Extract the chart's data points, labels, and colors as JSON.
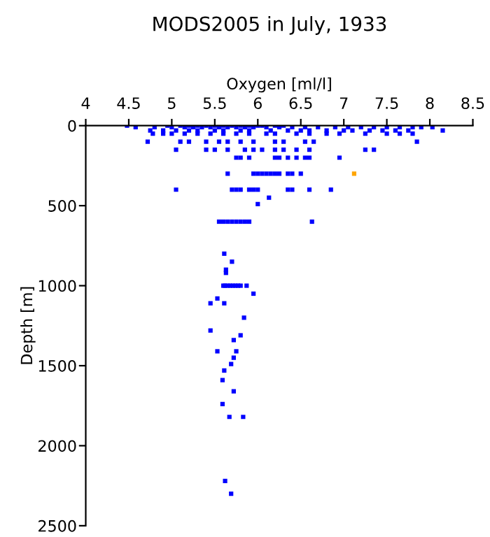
{
  "chart_data": {
    "type": "scatter",
    "title": "MODS2005 in July, 1933",
    "xlabel": "Oxygen [ml/l]",
    "ylabel": "Depth [m]",
    "xlim": [
      4,
      8.5
    ],
    "xticks": [
      4,
      4.5,
      5,
      5.5,
      6,
      6.5,
      7,
      7.5,
      8,
      8.5
    ],
    "ylim": [
      2500,
      0
    ],
    "yticks": [
      0,
      500,
      1000,
      1500,
      2000,
      2500
    ],
    "grid": false,
    "legend": false,
    "marker": "square",
    "series": [
      {
        "color": "#0000ff",
        "x": [
          4.48,
          4.95,
          5.1,
          5.2,
          5.3,
          5.4,
          5.5,
          5.6,
          5.7,
          5.8,
          5.9,
          6.0,
          6.05,
          6.2,
          6.3,
          4.58,
          4.8,
          5.0,
          5.15,
          5.25,
          5.35,
          5.45,
          5.55,
          5.65,
          5.75,
          5.85,
          5.95,
          6.1,
          6.25,
          6.4,
          6.55,
          6.7,
          6.9,
          7.05,
          7.2,
          7.35,
          7.5,
          7.65,
          7.8,
          7.9,
          8.03,
          4.75,
          4.9,
          5.05,
          5.2,
          5.3,
          5.5,
          5.6,
          5.8,
          5.9,
          6.15,
          6.35,
          6.5,
          6.6,
          6.8,
          7.0,
          7.1,
          7.3,
          7.45,
          7.6,
          7.75,
          8.15,
          4.78,
          4.9,
          5.0,
          5.15,
          5.3,
          5.45,
          5.6,
          5.75,
          5.9,
          6.1,
          6.2,
          6.45,
          6.6,
          6.8,
          6.95,
          7.25,
          7.5,
          7.65,
          7.8,
          4.72,
          5.1,
          5.2,
          5.4,
          5.55,
          5.65,
          5.8,
          5.95,
          6.2,
          6.3,
          6.55,
          6.65,
          7.85,
          5.05,
          5.4,
          5.5,
          5.65,
          5.85,
          5.95,
          6.05,
          6.2,
          6.3,
          6.45,
          6.6,
          7.25,
          7.35,
          5.75,
          5.8,
          5.9,
          6.2,
          6.25,
          6.35,
          6.45,
          6.55,
          6.6,
          6.95,
          5.65,
          5.95,
          6.0,
          6.05,
          6.1,
          6.15,
          6.2,
          6.25,
          6.35,
          6.4,
          6.5,
          5.05,
          5.7,
          5.75,
          5.8,
          5.9,
          5.95,
          6.0,
          6.35,
          6.4,
          6.6,
          6.85,
          6.13,
          6.0,
          5.55,
          5.6,
          5.65,
          5.7,
          5.75,
          5.8,
          5.85,
          5.9,
          6.63,
          5.61,
          5.7,
          5.63,
          5.63,
          5.6,
          5.62,
          5.65,
          5.68,
          5.71,
          5.74,
          5.77,
          5.8,
          5.87,
          5.95,
          5.53,
          5.45,
          5.61,
          5.84,
          5.45,
          5.8,
          5.72,
          5.53,
          5.75,
          5.72,
          5.69,
          5.61,
          5.59,
          5.72,
          5.59,
          5.67,
          5.83,
          5.62,
          5.69
        ],
        "values": [
          0,
          0,
          0,
          0,
          0,
          0,
          0,
          0,
          0,
          0,
          0,
          0,
          0,
          0,
          0,
          10,
          10,
          10,
          10,
          10,
          10,
          10,
          10,
          10,
          10,
          10,
          10,
          10,
          10,
          10,
          10,
          10,
          10,
          10,
          10,
          10,
          10,
          10,
          10,
          10,
          10,
          30,
          30,
          30,
          30,
          30,
          30,
          30,
          30,
          30,
          30,
          30,
          30,
          30,
          30,
          30,
          30,
          30,
          30,
          30,
          30,
          30,
          50,
          50,
          50,
          50,
          50,
          50,
          50,
          50,
          50,
          50,
          50,
          50,
          50,
          50,
          50,
          50,
          50,
          50,
          50,
          100,
          100,
          100,
          100,
          100,
          100,
          100,
          100,
          100,
          100,
          100,
          100,
          100,
          150,
          150,
          150,
          150,
          150,
          150,
          150,
          150,
          150,
          150,
          150,
          150,
          150,
          200,
          200,
          200,
          200,
          200,
          200,
          200,
          200,
          200,
          200,
          300,
          300,
          300,
          300,
          300,
          300,
          300,
          300,
          300,
          300,
          300,
          400,
          400,
          400,
          400,
          400,
          400,
          400,
          400,
          400,
          400,
          400,
          450,
          490,
          600,
          600,
          600,
          600,
          600,
          600,
          600,
          600,
          600,
          800,
          850,
          900,
          920,
          1000,
          1000,
          1000,
          1000,
          1000,
          1000,
          1000,
          1000,
          1000,
          1050,
          1080,
          1110,
          1110,
          1200,
          1280,
          1310,
          1340,
          1410,
          1410,
          1450,
          1490,
          1530,
          1590,
          1660,
          1740,
          1820,
          1820,
          2220,
          2300
        ]
      },
      {
        "color": "#ffa500",
        "x": [
          7.12
        ],
        "values": [
          300
        ]
      }
    ]
  }
}
